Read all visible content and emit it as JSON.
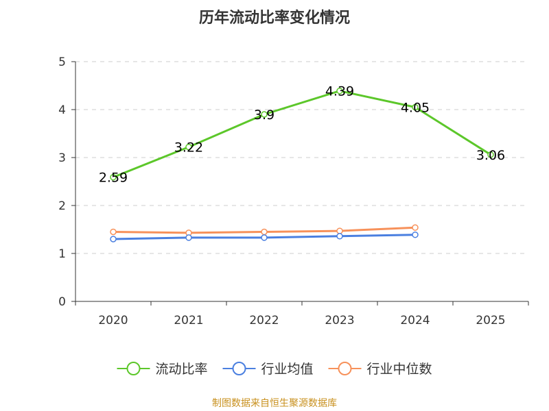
{
  "chart_data": {
    "type": "line",
    "title": "历年流动比率变化情况",
    "xlabel": "",
    "ylabel": "",
    "categories": [
      "2020",
      "2021",
      "2022",
      "2023",
      "2024",
      "2025"
    ],
    "ylim": [
      0,
      5
    ],
    "yticks": [
      0,
      1,
      2,
      3,
      4,
      5
    ],
    "grid": "horizontal dashed",
    "legend_position": "bottom",
    "series": [
      {
        "name": "流动比率",
        "color": "#5cc72a",
        "values": [
          2.59,
          3.22,
          3.9,
          4.39,
          4.05,
          3.06
        ],
        "show_labels": true
      },
      {
        "name": "行业均值",
        "color": "#4a7fe0",
        "values": [
          1.3,
          1.33,
          1.33,
          1.36,
          1.39,
          null
        ],
        "show_labels": false
      },
      {
        "name": "行业中位数",
        "color": "#f7915a",
        "values": [
          1.45,
          1.43,
          1.45,
          1.47,
          1.54,
          null
        ],
        "show_labels": false
      }
    ]
  },
  "source_note": "制图数据来自恒生聚源数据库"
}
